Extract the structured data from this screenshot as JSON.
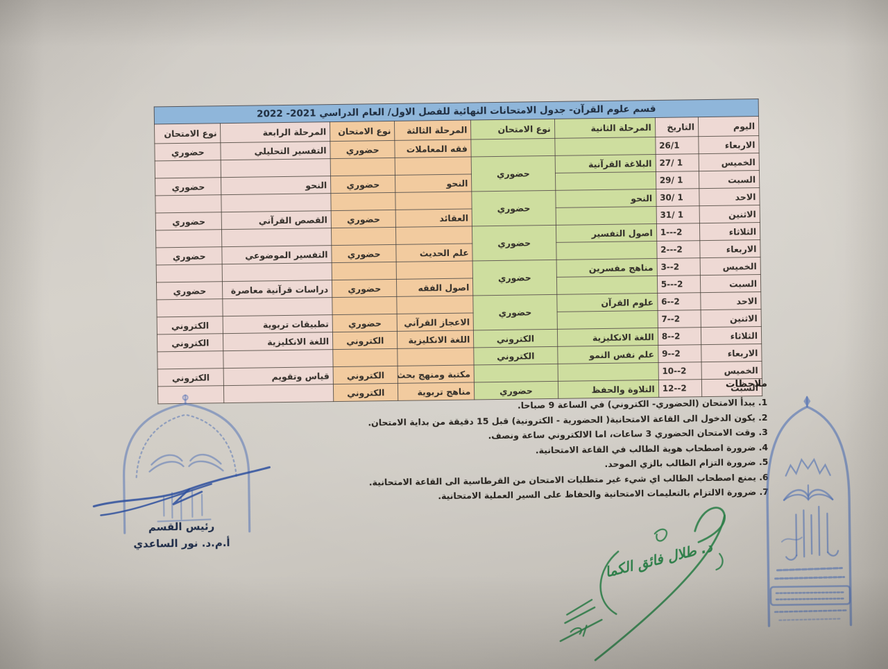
{
  "title": "قسم علوم القرآن- جدول الامتحانات النهائية للفصل الاول/ العام الدراسي 2021- 2022",
  "table": {
    "headers": {
      "day": "اليوم",
      "date": "التاريخ",
      "stage2": "المرحلة الثانية",
      "type2": "نوع الامتحان",
      "stage3": "المرحلة الثالثة",
      "type3": "نوع الامتحان",
      "stage4": "المرحلة الرابعة",
      "type4": "نوع الامتحان"
    },
    "rows": [
      {
        "day": "الاربعاء",
        "date": "26/1",
        "s2": "",
        "s2t": "",
        "s3": "فقه المعاملات",
        "s3t": "حضوري",
        "s4": "التفسير التحليلي",
        "s4t": "حضوري"
      },
      {
        "day": "الخميس",
        "date": "27/ 1",
        "s2": "البلاغة القرآنية",
        "s2t": "حضوري",
        "s2t_rowspan": 2,
        "s3": "",
        "s3t": "",
        "s4": "",
        "s4t": ""
      },
      {
        "day": "السبت",
        "date": "29/ 1",
        "s2": "",
        "s2t_skip": true,
        "s3": "النحو",
        "s3t": "حضوري",
        "s4": "النحو",
        "s4t": "حضوري"
      },
      {
        "day": "الاحد",
        "date": "30/ 1",
        "s2": "النحو",
        "s2t": "حضوري",
        "s2t_rowspan": 2,
        "s3": "",
        "s3t": "",
        "s4": "",
        "s4t": ""
      },
      {
        "day": "الاثنين",
        "date": "31/ 1",
        "s2": "",
        "s2t_skip": true,
        "s3": "العقائد",
        "s3t": "حضوري",
        "s4": "القصص القرآني",
        "s4t": "حضوري"
      },
      {
        "day": "الثلاثاء",
        "date": "1---2",
        "s2": "اصول التفسير",
        "s2t": "حضوري",
        "s2t_rowspan": 2,
        "s3": "",
        "s3t": "",
        "s4": "",
        "s4t": ""
      },
      {
        "day": "الاربعاء",
        "date": "2---2",
        "s2": "",
        "s2t_skip": true,
        "s3": "علم الحديث",
        "s3t": "حضوري",
        "s4": "التفسير الموضوعي",
        "s4t": "حضوري"
      },
      {
        "day": "الخميس",
        "date": "3--2",
        "s2": "مناهج مفسرين",
        "s2t": "حضوري",
        "s2t_rowspan": 2,
        "s3": "",
        "s3t": "",
        "s4": "",
        "s4t": ""
      },
      {
        "day": "السبت",
        "date": "5---2",
        "s2": "",
        "s2t_skip": true,
        "s3": "اصول الفقه",
        "s3t": "حضوري",
        "s4": "دراسات قرآنية معاصرة",
        "s4t": "حضوري"
      },
      {
        "day": "الاحد",
        "date": "6--2",
        "s2": "علوم القرآن",
        "s2t": "حضوري",
        "s2t_rowspan": 2,
        "s3": "",
        "s3t": "",
        "s4": "",
        "s4t": ""
      },
      {
        "day": "الاثنين",
        "date": "7--2",
        "s2": "",
        "s2t_skip": true,
        "s3": "الاعجاز القرآني",
        "s3t": "حضوري",
        "s4": "تطبيقات تربوية",
        "s4t": "الكتروني"
      },
      {
        "day": "الثلاثاء",
        "date": "8--2",
        "s2": "اللغة الانكليزية",
        "s2t": "الكتروني",
        "s3": "اللغة الانكليزية",
        "s3t": "الكتروني",
        "s4": "اللغة الانكليزية",
        "s4t": "الكتروني"
      },
      {
        "day": "الاربعاء",
        "date": "9--2",
        "s2": "علم نفس النمو",
        "s2t": "الكتروني",
        "s3": "",
        "s3t": "",
        "s4": "",
        "s4t": ""
      },
      {
        "day": "الخميس",
        "date": "10--2",
        "s2": "",
        "s2t": "",
        "s3": "مكتبة ومنهج بحث",
        "s3t": "الكتروني",
        "s4": "قياس وتقويم",
        "s4t": "الكتروني"
      },
      {
        "day": "السبت",
        "date": "12--2",
        "s2": "التلاوة والحفظ",
        "s2t": "حضوري",
        "s3": "مناهج تربوية",
        "s3t": "الكتروني",
        "s4": "",
        "s4t": ""
      }
    ]
  },
  "notes": {
    "heading": "ملاحظات",
    "items": [
      "1. يبدأ الامتحان (الحضوري- الكتروني)  في الساعة 9 صباحا.",
      "2. يكون الدخول الى القاعة الامتحانية( الحضورية - الكترونية)  قبل 15 دقيقة من بداية الامتحان.",
      "3. وقت الامتحان الحضوري 3 ساعات، اما الالكتروني ساعة ونصف.",
      "4. ضرورة اصطحاب هوية الطالب في  القاعة الامتحانية.",
      "5. ضرورة التزام الطالب بالزي الموحد.",
      "6. يمنع اصطحاب الطالب اي شيء غير متطلبات الامتحان من القرطاسية الى القاعة الامتحانية.",
      "7. ضرورة الالتزام بالتعليمات الامتحانية والحفاظ على السير العملية الامتحانية."
    ]
  },
  "signatures": {
    "left": {
      "title": "رئيس القسم",
      "name": "أ.م.د. نور الساعدي",
      "stamp": "arch-gate-department-stamp"
    },
    "right": {
      "name": "د. طلال فائق الكما",
      "stamp": "arch-minaret-college-stamp"
    }
  },
  "exam_type_values": [
    "حضوري",
    "الكتروني"
  ],
  "colors": {
    "title-blue": "#8fb6da",
    "pink": "#eed9d4",
    "green": "#cede9f",
    "tan": "#f2cb9f",
    "ink": "#322e29",
    "stamp-blue": "#4a6cb3",
    "sign-blue": "#2d4f9e",
    "sign-green": "#2f7f4a"
  }
}
